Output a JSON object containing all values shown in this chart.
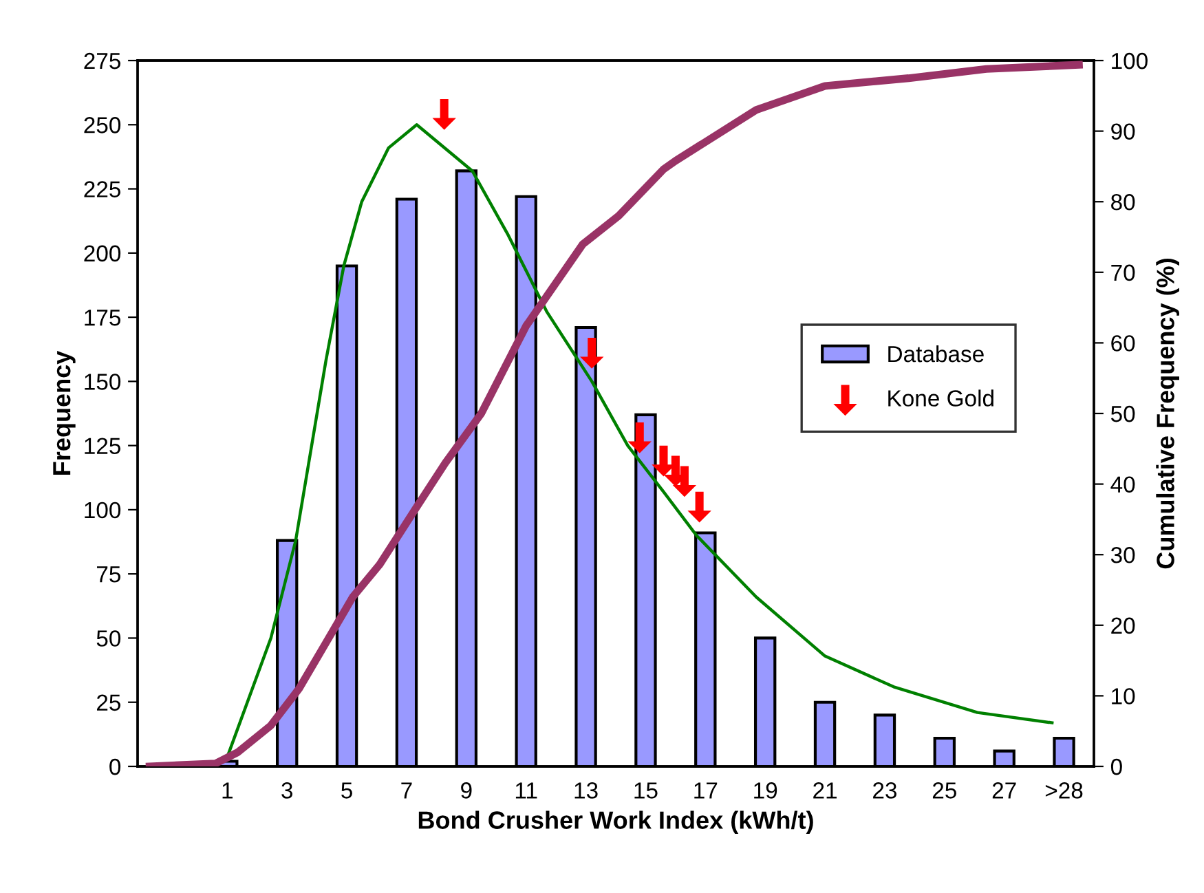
{
  "chart_data": {
    "type": "bar",
    "xlabel": "Bond Crusher Work Index (kWh/t)",
    "ylabel": "Frequency",
    "y2label": "Cumulative Frequency (%)",
    "xlim": [
      -2,
      30
    ],
    "xticks": [
      1,
      3,
      5,
      7,
      9,
      11,
      13,
      15,
      17,
      19,
      21,
      23,
      25,
      27,
      {
        "value": 29,
        "label": ">28"
      }
    ],
    "ylim": [
      0,
      275
    ],
    "yticks": [
      0,
      25,
      50,
      75,
      100,
      125,
      150,
      175,
      200,
      225,
      250,
      275
    ],
    "y2lim": [
      0,
      100
    ],
    "y2ticks": [
      0,
      10,
      20,
      30,
      40,
      50,
      60,
      70,
      80,
      90,
      100
    ],
    "grid": false,
    "legend": "right",
    "series": [
      {
        "name": "Database",
        "color": "#9999ff",
        "x": [
          1,
          3,
          5,
          7,
          9,
          11,
          13,
          15,
          17,
          19,
          21,
          23,
          25,
          27,
          29
        ],
        "values": [
          2,
          88,
          195,
          221,
          232,
          222,
          171,
          137,
          91,
          50,
          25,
          20,
          11,
          6,
          11
        ]
      },
      {
        "type": "line",
        "color": "#008000",
        "x": [
          0.98,
          2.46,
          3.29,
          4.3,
          4.9,
          5.5,
          6.4,
          7.34,
          9.2,
          10.4,
          11.7,
          13.2,
          14.4,
          15.6,
          16.7,
          18.7,
          21.0,
          23.3,
          26.1,
          28.6
        ],
        "values": [
          3,
          50,
          88,
          158,
          195,
          220,
          241,
          250,
          232,
          207,
          177,
          150,
          125,
          107,
          90,
          66,
          43,
          31,
          21,
          17
        ]
      },
      {
        "type": "line",
        "axis": "y2",
        "color": "#993366",
        "x": [
          -1.6,
          0.6,
          1.35,
          2.46,
          3.4,
          4.3,
          5.2,
          6.1,
          7.3,
          8.3,
          9.5,
          11.0,
          12.9,
          14.1,
          15.6,
          16.0,
          18.7,
          21.0,
          23.8,
          26.4,
          29.5
        ],
        "values": [
          0,
          0.4,
          2,
          5.8,
          11,
          17.5,
          24,
          28.6,
          36.5,
          43,
          50,
          62.4,
          74,
          78,
          84.6,
          85.8,
          93,
          96.4,
          97.5,
          98.8,
          99.4
        ]
      },
      {
        "name": "Kone Gold",
        "type": "scatter",
        "color": "#ff0000",
        "x": [
          8.26,
          13.2,
          14.8,
          15.6,
          16.0,
          16.3,
          16.8
        ],
        "values": [
          254,
          161,
          128,
          119,
          115,
          111,
          101
        ]
      }
    ]
  }
}
